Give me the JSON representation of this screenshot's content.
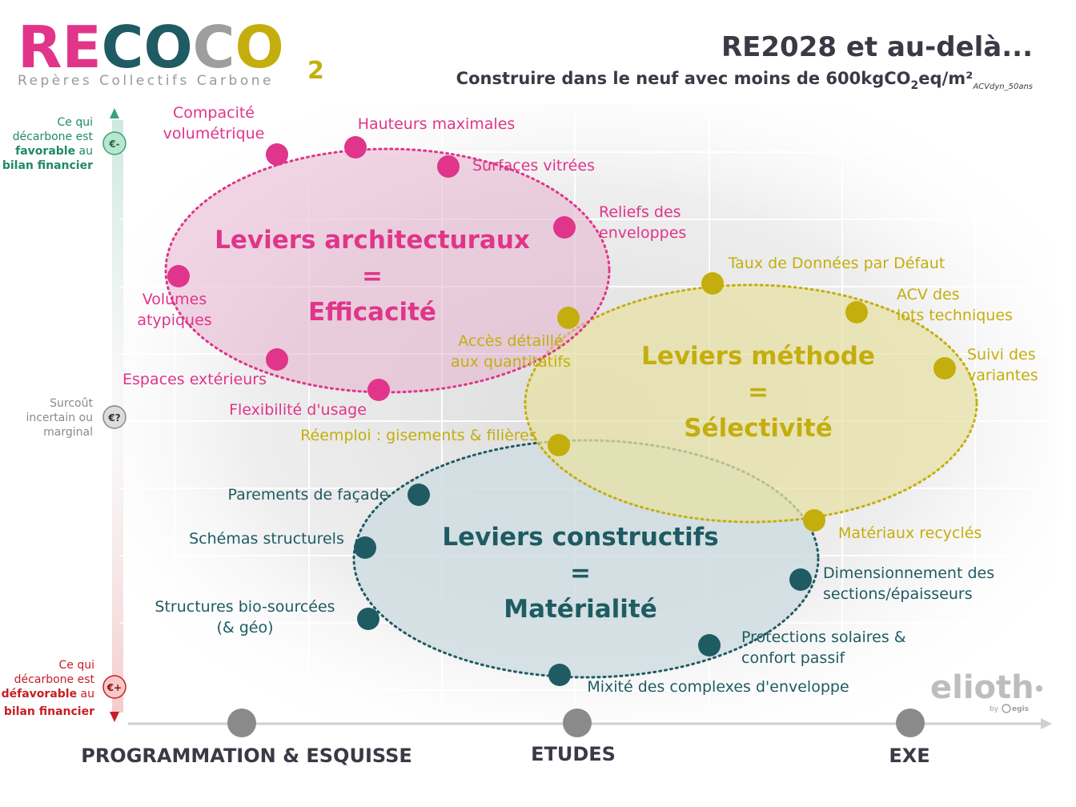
{
  "header": {
    "logo_main": "RECOCO",
    "logo_sub": "2",
    "logo_tagline": "Repères Collectifs Carbone",
    "title": "RE2028 et au-delà...",
    "subtitle_part1": "Construire dans le neuf avec moins de 600kgCO",
    "subtitle_sub2": "2",
    "subtitle_part2": "eq/m²",
    "subtitle_suffix": "ACVdyn_50ans"
  },
  "colors": {
    "pink": "#e0358a",
    "olive": "#c4ae0d",
    "teal": "#1f5b63",
    "grey": "#8a8a8a",
    "dark": "#3a3a46",
    "green": "#3aa17e",
    "red": "#c81e24"
  },
  "yaxis": {
    "top_line1": "Ce qui",
    "top_line2": "décarbone est",
    "top_bold3": "favorable",
    "top_line3": " au",
    "top_bold4": "bilan financier",
    "top_badge": "€-",
    "mid_line1": "Surcoût",
    "mid_line2": "incertain ou",
    "mid_line3": "marginal",
    "mid_badge": "€?",
    "bot_line1": "Ce qui",
    "bot_line2": "décarbone est",
    "bot_bold3": "défavorable",
    "bot_line3": " au",
    "bot_bold4": "bilan financier",
    "bot_badge": "€+"
  },
  "phases": [
    "PROGRAMMATION & ESQUISSE",
    "ETUDES",
    "EXE"
  ],
  "groups": {
    "architectural": {
      "title1": "Leviers architecturaux",
      "title2": "=",
      "title3": "Efficacité",
      "items": [
        {
          "label": [
            "Compacité",
            "volumétrique"
          ]
        },
        {
          "label": [
            "Hauteurs maximales"
          ]
        },
        {
          "label": [
            "Surfaces vitrées"
          ]
        },
        {
          "label": [
            "Reliefs des",
            "enveloppes"
          ]
        },
        {
          "label": [
            "Volumes",
            "atypiques"
          ]
        },
        {
          "label": [
            "Espaces extérieurs"
          ]
        },
        {
          "label": [
            "Flexibilité d'usage"
          ]
        }
      ]
    },
    "method": {
      "title1": "Leviers méthode",
      "title2": "=",
      "title3": "Sélectivité",
      "items": [
        {
          "label": [
            "Taux de Données par Défaut"
          ]
        },
        {
          "label": [
            "ACV des",
            "lots techniques"
          ]
        },
        {
          "label": [
            "Suivi des",
            "variantes"
          ]
        },
        {
          "label": [
            "Accès détaillé",
            "aux quantitatifs"
          ]
        },
        {
          "label": [
            "Réemploi : gisements & filières"
          ]
        },
        {
          "label": [
            "Matériaux recyclés"
          ]
        }
      ]
    },
    "constructive": {
      "title1": "Leviers constructifs",
      "title2": "=",
      "title3": "Matérialité",
      "items": [
        {
          "label": [
            "Parements de façade"
          ]
        },
        {
          "label": [
            "Schémas structurels"
          ]
        },
        {
          "label": [
            "Structures bio-sourcées",
            "(& géo)"
          ]
        },
        {
          "label": [
            "Mixité des complexes d'enveloppe"
          ]
        },
        {
          "label": [
            "Protections solaires &",
            "confort passif"
          ]
        },
        {
          "label": [
            "Dimensionnement des",
            "sections/épaisseurs"
          ]
        }
      ]
    }
  },
  "brand": {
    "name": "elioth",
    "by": "by",
    "parent": "egis"
  }
}
